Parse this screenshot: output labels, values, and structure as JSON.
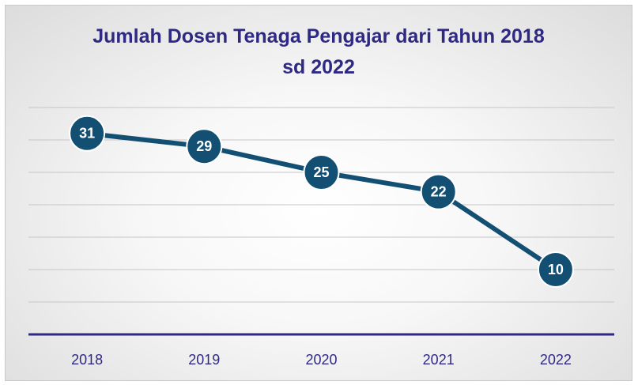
{
  "chart_data": {
    "type": "line",
    "title": "Jumlah Dosen Tenaga Pengajar dari Tahun 2018 sd 2022",
    "categories": [
      "2018",
      "2019",
      "2020",
      "2021",
      "2022"
    ],
    "series": [
      {
        "name": "Jumlah Dosen",
        "color": "#134f72",
        "values": [
          31,
          29,
          25,
          22,
          10
        ]
      }
    ],
    "ylim": [
      0,
      35
    ],
    "yticks": [
      0,
      5,
      10,
      15,
      20,
      25,
      30,
      35
    ],
    "grid": true
  }
}
